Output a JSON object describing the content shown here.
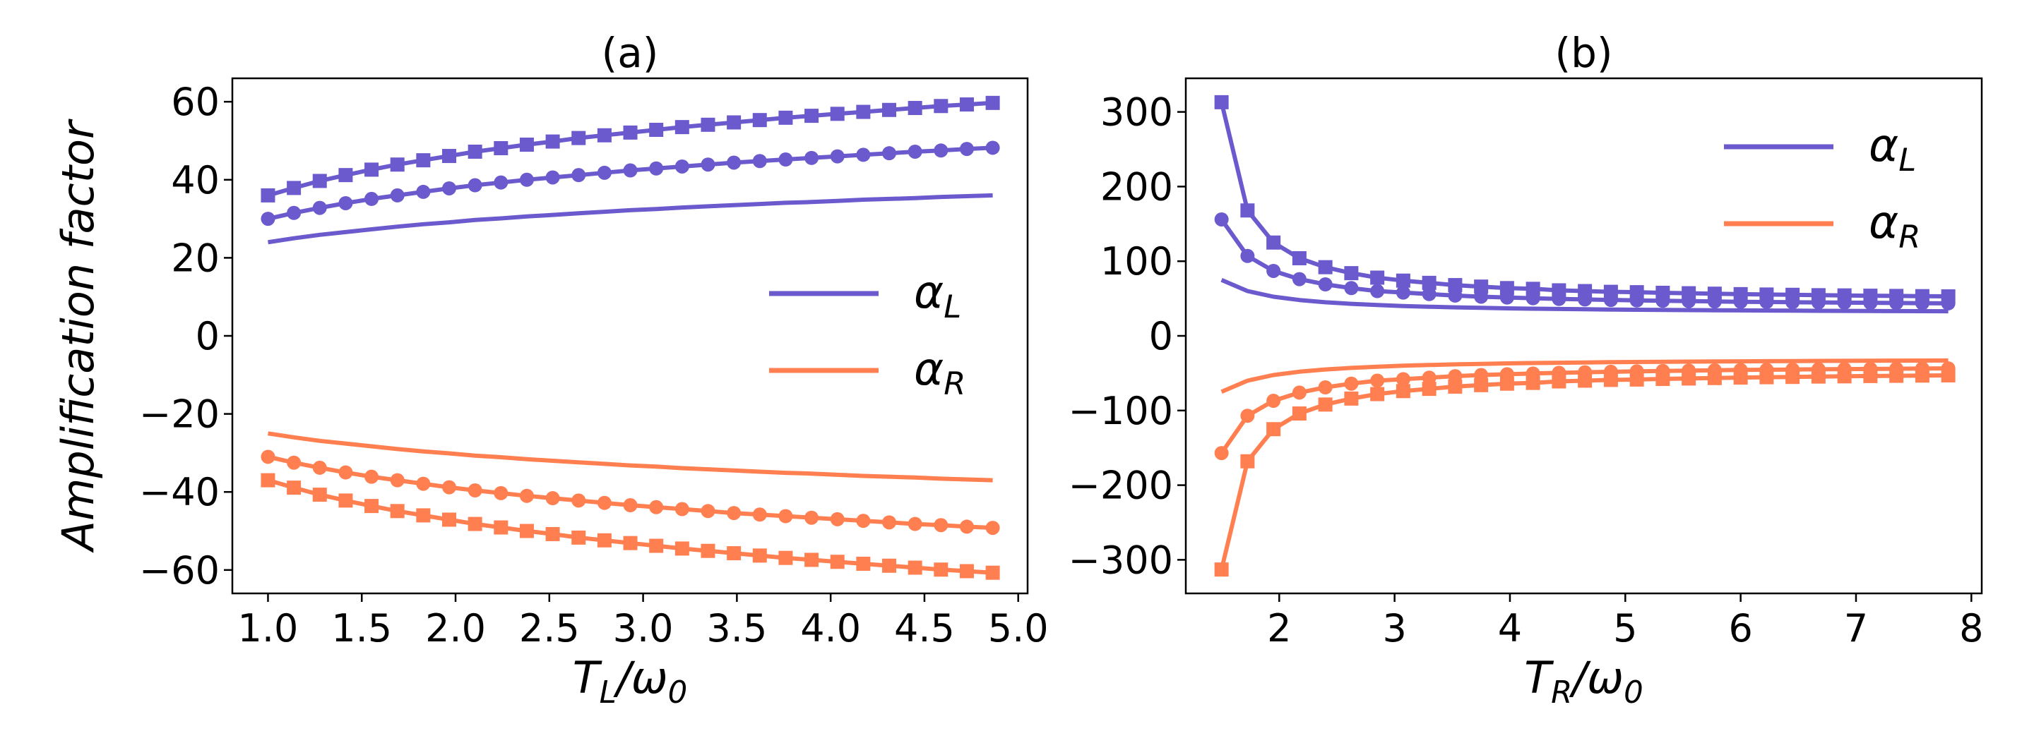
{
  "chart_data": [
    {
      "type": "line",
      "title": "(a)",
      "ylabel": "Amplification factor",
      "xlabel": {
        "main": "T",
        "sub": "L",
        "rest": "/ω",
        "sub2": "0"
      },
      "xlim": [
        0.81,
        5.05
      ],
      "ylim": [
        -66,
        66
      ],
      "xticks": [
        1.0,
        1.5,
        2.0,
        2.5,
        3.0,
        3.5,
        4.0,
        4.5,
        5.0
      ],
      "xtick_labels": [
        "1.0",
        "1.5",
        "2.0",
        "2.5",
        "3.0",
        "3.5",
        "4.0",
        "4.5",
        "5.0"
      ],
      "yticks": [
        60,
        40,
        20,
        0,
        -20,
        -40,
        -60
      ],
      "ytick_labels": [
        "60",
        "40",
        "20",
        "0",
        "−20",
        "−40",
        "−60"
      ],
      "legend": {
        "position": "center-right",
        "entries": [
          {
            "main": "α",
            "sub": "L",
            "color": "#6a5acd"
          },
          {
            "main": "α",
            "sub": "R",
            "color": "#ff7f50"
          }
        ]
      },
      "x": [
        1.0,
        1.138,
        1.276,
        1.414,
        1.552,
        1.69,
        1.828,
        1.966,
        2.104,
        2.242,
        2.38,
        2.518,
        2.656,
        2.794,
        2.932,
        3.07,
        3.208,
        3.346,
        3.484,
        3.622,
        3.76,
        3.898,
        4.036,
        4.174,
        4.312,
        4.45,
        4.588,
        4.726,
        4.864
      ],
      "series": [
        {
          "name": "alpha_L squares",
          "color": "#6a5acd",
          "marker": "square",
          "values": [
            36.0,
            37.9,
            39.7,
            41.2,
            42.6,
            43.9,
            45.0,
            46.1,
            47.2,
            48.1,
            49.0,
            49.8,
            50.7,
            51.4,
            52.1,
            52.8,
            53.5,
            54.1,
            54.7,
            55.3,
            55.9,
            56.4,
            56.9,
            57.4,
            57.9,
            58.4,
            58.9,
            59.3,
            59.7
          ]
        },
        {
          "name": "alpha_L circles",
          "color": "#6a5acd",
          "marker": "circle",
          "values": [
            30.0,
            31.5,
            32.8,
            34.0,
            35.1,
            36.0,
            36.9,
            37.8,
            38.6,
            39.3,
            40.0,
            40.6,
            41.2,
            41.8,
            42.4,
            42.9,
            43.4,
            43.9,
            44.4,
            44.8,
            45.2,
            45.6,
            46.0,
            46.4,
            46.8,
            47.2,
            47.5,
            47.9,
            48.2
          ]
        },
        {
          "name": "alpha_L",
          "color": "#6a5acd",
          "marker": "none",
          "values": [
            24.0,
            25.0,
            25.9,
            26.6,
            27.3,
            28.0,
            28.6,
            29.1,
            29.7,
            30.1,
            30.6,
            31.0,
            31.4,
            31.8,
            32.2,
            32.5,
            32.9,
            33.2,
            33.5,
            33.8,
            34.1,
            34.3,
            34.6,
            34.9,
            35.1,
            35.3,
            35.6,
            35.8,
            36.0
          ]
        },
        {
          "name": "alpha_R",
          "color": "#ff7f50",
          "marker": "none",
          "values": [
            -25.0,
            -26.0,
            -26.9,
            -27.6,
            -28.3,
            -29.0,
            -29.6,
            -30.1,
            -30.7,
            -31.1,
            -31.6,
            -32.0,
            -32.4,
            -32.8,
            -33.2,
            -33.5,
            -33.9,
            -34.2,
            -34.5,
            -34.8,
            -35.1,
            -35.3,
            -35.6,
            -35.9,
            -36.1,
            -36.3,
            -36.6,
            -36.8,
            -37.0
          ]
        },
        {
          "name": "alpha_R circles",
          "color": "#ff7f50",
          "marker": "circle",
          "values": [
            -31.0,
            -32.5,
            -33.8,
            -35.0,
            -36.1,
            -37.0,
            -37.9,
            -38.8,
            -39.6,
            -40.3,
            -41.0,
            -41.6,
            -42.2,
            -42.8,
            -43.4,
            -43.9,
            -44.4,
            -44.9,
            -45.4,
            -45.8,
            -46.2,
            -46.6,
            -47.0,
            -47.4,
            -47.8,
            -48.2,
            -48.5,
            -48.9,
            -49.2
          ]
        },
        {
          "name": "alpha_R squares",
          "color": "#ff7f50",
          "marker": "square",
          "values": [
            -37.0,
            -38.9,
            -40.7,
            -42.2,
            -43.6,
            -44.9,
            -46.0,
            -47.1,
            -48.2,
            -49.1,
            -50.0,
            -50.8,
            -51.7,
            -52.4,
            -53.1,
            -53.8,
            -54.5,
            -55.1,
            -55.7,
            -56.3,
            -56.9,
            -57.4,
            -57.9,
            -58.4,
            -58.9,
            -59.4,
            -59.9,
            -60.3,
            -60.7
          ]
        }
      ]
    },
    {
      "type": "line",
      "title": "(b)",
      "ylabel": "",
      "xlabel": {
        "main": "T",
        "sub": "R",
        "rest": "/ω",
        "sub2": "0"
      },
      "xlim": [
        1.19,
        8.09
      ],
      "ylim": [
        -345,
        345
      ],
      "xticks": [
        2,
        3,
        4,
        5,
        6,
        7,
        8
      ],
      "xtick_labels": [
        "2",
        "3",
        "4",
        "5",
        "6",
        "7",
        "8"
      ],
      "yticks": [
        300,
        200,
        100,
        0,
        -100,
        -200,
        -300
      ],
      "ytick_labels": [
        "300",
        "200",
        "100",
        "0",
        "−100",
        "−200",
        "−300"
      ],
      "legend": {
        "position": "upper-right",
        "entries": [
          {
            "main": "α",
            "sub": "L",
            "color": "#6a5acd"
          },
          {
            "main": "α",
            "sub": "R",
            "color": "#ff7f50"
          }
        ]
      },
      "x": [
        1.5,
        1.725,
        1.95,
        2.175,
        2.4,
        2.625,
        2.85,
        3.075,
        3.3,
        3.525,
        3.75,
        3.975,
        4.2,
        4.425,
        4.65,
        4.875,
        5.1,
        5.325,
        5.55,
        5.775,
        6.0,
        6.225,
        6.45,
        6.675,
        6.9,
        7.125,
        7.35,
        7.575,
        7.8
      ],
      "series": [
        {
          "name": "alpha_L squares",
          "color": "#6a5acd",
          "marker": "square",
          "values": [
            313,
            168,
            125,
            104,
            92,
            84,
            78,
            74,
            71,
            68,
            66,
            64,
            63,
            61,
            60,
            59,
            58.5,
            57.7,
            57.1,
            56.5,
            55.9,
            55.4,
            55.0,
            54.5,
            54.2,
            53.8,
            53.5,
            53.2,
            52.9
          ]
        },
        {
          "name": "alpha_L circles",
          "color": "#6a5acd",
          "marker": "circle",
          "values": [
            156,
            107,
            87,
            76,
            69,
            64,
            60,
            58,
            56,
            54,
            52.5,
            51.4,
            50.4,
            49.5,
            48.8,
            48.1,
            47.5,
            47.0,
            46.5,
            46.1,
            45.7,
            45.4,
            45.1,
            44.8,
            44.5,
            44.3,
            44.0,
            43.8,
            43.6
          ]
        },
        {
          "name": "alpha_L",
          "color": "#6a5acd",
          "marker": "none",
          "values": [
            75,
            60,
            52.5,
            48,
            45,
            42.9,
            41.3,
            40,
            39,
            38.2,
            37.5,
            36.9,
            36.4,
            36.0,
            35.6,
            35.3,
            35.0,
            34.7,
            34.5,
            34.3,
            34.1,
            33.9,
            33.8,
            33.6,
            33.5,
            33.3,
            33.2,
            33.1,
            33.0
          ]
        },
        {
          "name": "alpha_R",
          "color": "#ff7f50",
          "marker": "none",
          "values": [
            -75,
            -60,
            -52.5,
            -48,
            -45,
            -42.9,
            -41.3,
            -40,
            -39,
            -38.2,
            -37.5,
            -36.9,
            -36.4,
            -36.0,
            -35.6,
            -35.3,
            -35.0,
            -34.7,
            -34.5,
            -34.3,
            -34.1,
            -33.9,
            -33.8,
            -33.6,
            -33.5,
            -33.3,
            -33.2,
            -33.1,
            -33.0
          ]
        },
        {
          "name": "alpha_R circles",
          "color": "#ff7f50",
          "marker": "circle",
          "values": [
            -157,
            -107,
            -87,
            -76,
            -69,
            -64,
            -60,
            -58,
            -56,
            -54,
            -52.5,
            -51.4,
            -50.4,
            -49.5,
            -48.8,
            -48.1,
            -47.5,
            -47.0,
            -46.5,
            -46.1,
            -45.7,
            -45.4,
            -45.1,
            -44.8,
            -44.5,
            -44.3,
            -44.0,
            -43.8,
            -43.6
          ]
        },
        {
          "name": "alpha_R squares",
          "color": "#ff7f50",
          "marker": "square",
          "values": [
            -313,
            -168,
            -125,
            -104,
            -92,
            -84,
            -78,
            -74,
            -71,
            -68,
            -66,
            -64,
            -63,
            -61,
            -60,
            -59,
            -58.5,
            -57.7,
            -57.1,
            -56.5,
            -55.9,
            -55.4,
            -55.0,
            -54.5,
            -54.2,
            -53.8,
            -53.5,
            -53.2,
            -52.9
          ]
        }
      ]
    }
  ]
}
